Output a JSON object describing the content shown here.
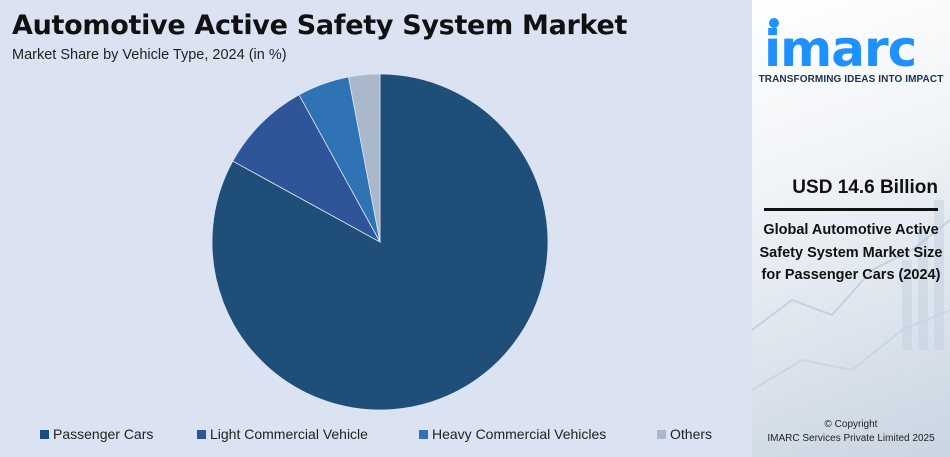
{
  "title": "Automotive Active Safety System Market",
  "subtitle": "Market Share by Vehicle Type, 2024 (in %)",
  "chart_data": {
    "type": "pie",
    "title": "Automotive Active Safety System Market",
    "subtitle": "Market Share by Vehicle Type, 2024 (in %)",
    "categories": [
      "Passenger Cars",
      "Light Commercial Vehicle",
      "Heavy Commercial Vehicles",
      "Others"
    ],
    "values": [
      83,
      9,
      5,
      3
    ],
    "colors": [
      "#1f4e79",
      "#2e5597",
      "#2f73b5",
      "#a9b8cb"
    ],
    "start": "12 o'clock",
    "direction": "clockwise",
    "legend_position": "bottom"
  },
  "sidebar": {
    "logo_text": "imarc",
    "tagline": "TRANSFORMING IDEAS INTO IMPACT",
    "headline": "USD 14.6 Billion",
    "description": "Global Automotive Active Safety System Market Size for Passenger Cars (2024)",
    "copyright_line1": "© Copyright",
    "copyright_line2": "IMARC Services Private Limited 2025"
  },
  "colors": {
    "panel_background": "#dbe3f2",
    "brand_blue": "#1e90ff",
    "brand_navy": "#1a3150"
  }
}
